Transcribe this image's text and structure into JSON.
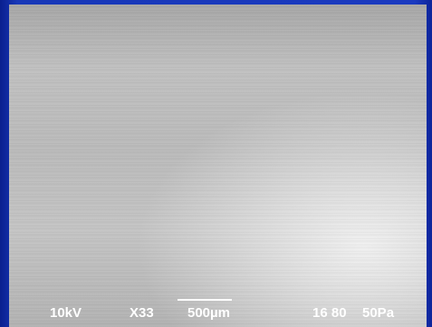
{
  "info_bar": {
    "voltage": "10kV",
    "magnification": "X33",
    "scale": "500µm",
    "code": "16 80",
    "pressure": "50Pa"
  }
}
